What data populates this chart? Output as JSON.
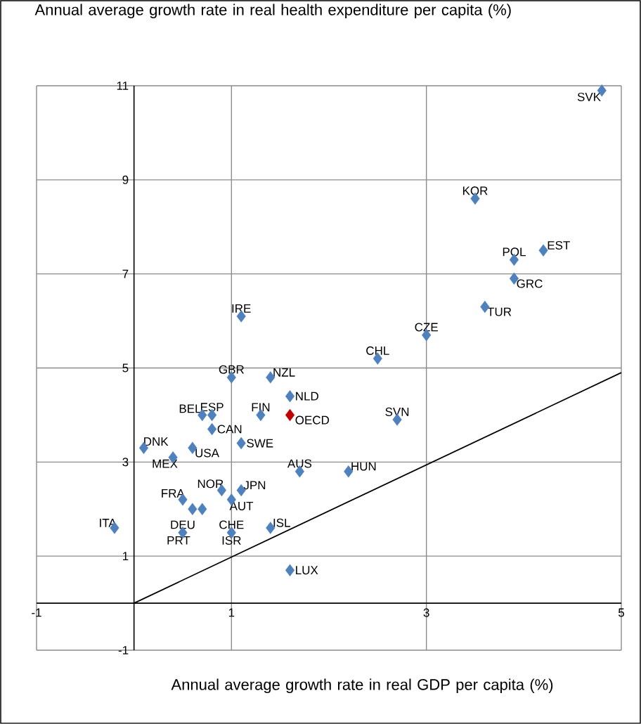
{
  "chart_data": {
    "type": "scatter",
    "xlabel": "Annual average growth rate in real GDP per capita (%)",
    "ylabel": "Annual average growth rate in real health expenditure per capita (%)",
    "xlim": [
      -1,
      5
    ],
    "ylim": [
      -1,
      11
    ],
    "xticks": [
      -1,
      1,
      3,
      5
    ],
    "yticks": [
      -1,
      1,
      3,
      5,
      7,
      9,
      11
    ],
    "grid": true,
    "marker": "diamond",
    "legend": false,
    "series": [
      {
        "color": "#4f81bd",
        "x": [
          4.8,
          3.5,
          4.2,
          3.9,
          3.9,
          3.6,
          3.0,
          2.5,
          1.1,
          1.0,
          1.4,
          1.6,
          1.3,
          2.7,
          0.7,
          0.8,
          0.8,
          1.1,
          0.1,
          0.6,
          0.4,
          1.7,
          2.2,
          1.1,
          0.9,
          1.0,
          0.5,
          0.6,
          0.7,
          1.0,
          0.5,
          1.4,
          -0.2,
          1.6
        ],
        "values": [
          10.9,
          8.6,
          7.5,
          7.3,
          6.9,
          6.3,
          5.7,
          5.2,
          6.1,
          4.8,
          4.8,
          4.4,
          4.0,
          3.9,
          4.0,
          4.0,
          3.7,
          3.4,
          3.3,
          3.3,
          3.1,
          2.8,
          2.8,
          2.4,
          2.4,
          2.2,
          2.2,
          2.0,
          2.0,
          1.5,
          1.5,
          1.6,
          1.6,
          0.7
        ]
      },
      {
        "name": "OECD",
        "color": "#c00000",
        "x": [
          1.6
        ],
        "values": [
          4.0
        ]
      },
      {
        "type": "line",
        "color": "#000000",
        "marker": "none",
        "line_style": "solid",
        "x": [
          0,
          5
        ],
        "values": [
          0,
          4.9
        ]
      }
    ],
    "annotations": [
      {
        "text": "SVK",
        "x": 4.8,
        "y": 10.9
      },
      {
        "text": "KOR",
        "x": 3.5,
        "y": 8.6
      },
      {
        "text": "EST",
        "x": 4.2,
        "y": 7.5
      },
      {
        "text": "POL",
        "x": 3.9,
        "y": 7.3
      },
      {
        "text": "GRC",
        "x": 3.9,
        "y": 6.9
      },
      {
        "text": "TUR",
        "x": 3.6,
        "y": 6.3
      },
      {
        "text": "CZE",
        "x": 3.0,
        "y": 5.7
      },
      {
        "text": "CHL",
        "x": 2.5,
        "y": 5.2
      },
      {
        "text": "IRE",
        "x": 1.1,
        "y": 6.1
      },
      {
        "text": "GBR",
        "x": 1.0,
        "y": 4.8
      },
      {
        "text": "NZL",
        "x": 1.4,
        "y": 4.8
      },
      {
        "text": "NLD",
        "x": 1.6,
        "y": 4.4
      },
      {
        "text": "FIN",
        "x": 1.3,
        "y": 4.0
      },
      {
        "text": "SVN",
        "x": 2.7,
        "y": 3.9
      },
      {
        "text": "BEL",
        "x": 0.7,
        "y": 4.0
      },
      {
        "text": "ESP",
        "x": 0.8,
        "y": 4.0
      },
      {
        "text": "CAN",
        "x": 0.8,
        "y": 3.7
      },
      {
        "text": "SWE",
        "x": 1.1,
        "y": 3.4
      },
      {
        "text": "DNK",
        "x": 0.1,
        "y": 3.3
      },
      {
        "text": "USA",
        "x": 0.6,
        "y": 3.3
      },
      {
        "text": "MEX",
        "x": 0.4,
        "y": 3.1
      },
      {
        "text": "AUS",
        "x": 1.7,
        "y": 2.8
      },
      {
        "text": "HUN",
        "x": 2.2,
        "y": 2.8
      },
      {
        "text": "JPN",
        "x": 1.1,
        "y": 2.4
      },
      {
        "text": "NOR",
        "x": 0.9,
        "y": 2.4
      },
      {
        "text": "AUT",
        "x": 1.0,
        "y": 2.2
      },
      {
        "text": "FRA",
        "x": 0.5,
        "y": 2.2
      },
      {
        "text": "DEU",
        "x": 0.5,
        "y": 1.5
      },
      {
        "text": "CHE",
        "x": 1.0,
        "y": 1.5
      },
      {
        "text": "PRT",
        "x": 0.5,
        "y": 1.5
      },
      {
        "text": "ISL",
        "x": 1.4,
        "y": 1.6
      },
      {
        "text": "ITA",
        "x": -0.2,
        "y": 1.6
      },
      {
        "text": "LUX",
        "x": 1.6,
        "y": 0.7
      },
      {
        "text": "ISR",
        "x": 1.0,
        "y": 1.5
      }
    ]
  }
}
